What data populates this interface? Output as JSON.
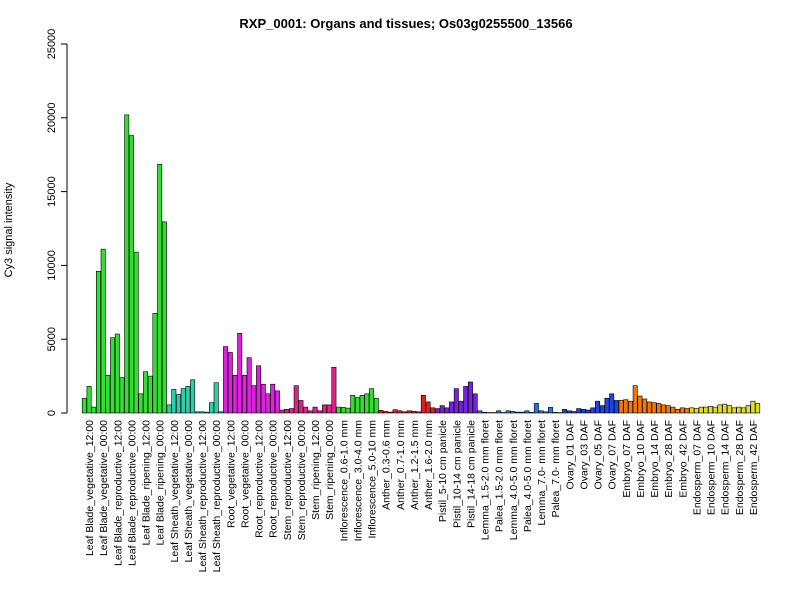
{
  "chart_data": {
    "type": "bar",
    "title": "RXP_0001: Organs and tissues; Os03g0255500_13566",
    "xlabel": "",
    "ylabel": "Cy3 signal intensity",
    "ylim": [
      0,
      25000
    ],
    "yticks": [
      0,
      5000,
      10000,
      15000,
      20000,
      25000
    ],
    "grid": false,
    "legend": "none",
    "group_labels": [
      "Leaf Blade_vegetative_12:00",
      "Leaf Blade_vegetative_00:00",
      "Leaf Blade_reproductive_12:00",
      "Leaf Blade_reproductive_00:00",
      "Leaf Blade_ripening_12:00",
      "Leaf Blade_ripening_00:00",
      "Leaf Sheath_vegetative_12:00",
      "Leaf Sheath_vegetative_00:00",
      "Leaf Sheath_reproductive_12:00",
      "Leaf Sheath_reproductive_00:00",
      "Root_vegetative_12:00",
      "Root_vegetative_00:00",
      "Root_reproductive_12:00",
      "Root_reproductive_00:00",
      "Stem_reproductive_12:00",
      "Stem_reproductive_00:00",
      "Stem_ripening_12:00",
      "Stem_ripening_00:00",
      "Inflorescence_0.6-1.0 mm",
      "Inflorescence_3.0-4.0 mm",
      "Inflorescence_5.0-10 mm",
      "Anther_0.3-0.6 mm",
      "Anther_0.7-1.0 mm",
      "Anther_1.2-1.5 mm",
      "Anther_1.6-2.0 mm",
      "Pistil_5-10 cm panicle",
      "Pistil_10-14 cm panicle",
      "Pistil_14-18 cm panicle",
      "Lemma_1.5-2.0 mm floret",
      "Palea_1.5-2.0 mm floret",
      "Lemma_4.0-5.0 mm floret",
      "Palea_4.0-5.0 mm floret",
      "Lemma_7.0- mm floret",
      "Palea_7.0- mm floret",
      "Ovary_01 DAF",
      "Ovary_03 DAF",
      "Ovary_05 DAF",
      "Ovary_07 DAF",
      "Embryo_07 DAF",
      "Embryo_10 DAF",
      "Embryo_14 DAF",
      "Embryo_28 DAF",
      "Embryo_42 DAF",
      "Endosperm_07 DAF",
      "Endosperm_10 DAF",
      "Endosperm_14 DAF",
      "Endosperm_28 DAF",
      "Endosperm_42 DAF"
    ],
    "groups": [
      {
        "color": "#33dd33",
        "values": [
          1000,
          1800,
          400
        ]
      },
      {
        "color": "#33dd33",
        "values": [
          9600,
          11100,
          2550
        ]
      },
      {
        "color": "#33dd33",
        "values": [
          5100,
          5350,
          2400
        ]
      },
      {
        "color": "#33dd33",
        "values": [
          20200,
          18800,
          10900
        ]
      },
      {
        "color": "#33dd33",
        "values": [
          1300,
          2800,
          2500
        ]
      },
      {
        "color": "#33dd33",
        "values": [
          6750,
          16850,
          12950
        ]
      },
      {
        "color": "#33ccaa",
        "values": [
          550,
          1600,
          1250
        ]
      },
      {
        "color": "#33ccaa",
        "values": [
          1650,
          1800,
          2250
        ]
      },
      {
        "color": "#33ccaa",
        "values": [
          80,
          80,
          60
        ]
      },
      {
        "color": "#33ccaa",
        "values": [
          700,
          2050,
          80
        ]
      },
      {
        "color": "#dd22dd",
        "values": [
          4500,
          4100,
          2550
        ]
      },
      {
        "color": "#dd22dd",
        "values": [
          5400,
          2550,
          3750
        ]
      },
      {
        "color": "#dd22dd",
        "values": [
          1850,
          3200,
          1950
        ]
      },
      {
        "color": "#dd22dd",
        "values": [
          1300,
          1950,
          1500
        ]
      },
      {
        "color": "#dd2288",
        "values": [
          200,
          250,
          300
        ]
      },
      {
        "color": "#dd2288",
        "values": [
          1850,
          850,
          400
        ]
      },
      {
        "color": "#dd2288",
        "values": [
          150,
          400,
          150
        ]
      },
      {
        "color": "#dd2288",
        "values": [
          550,
          550,
          3100
        ]
      },
      {
        "color": "#33dd33",
        "values": [
          400,
          380,
          330
        ]
      },
      {
        "color": "#33dd33",
        "values": [
          1200,
          1050,
          1200
        ]
      },
      {
        "color": "#33dd33",
        "values": [
          1300,
          1650,
          1000
        ]
      },
      {
        "color": "#dd2222",
        "values": [
          180,
          100,
          60
        ]
      },
      {
        "color": "#dd2222",
        "values": [
          220,
          150,
          80
        ]
      },
      {
        "color": "#dd2222",
        "values": [
          150,
          120,
          80
        ]
      },
      {
        "color": "#dd2222",
        "values": [
          1200,
          750,
          350
        ]
      },
      {
        "color": "#7722dd",
        "values": [
          300,
          500,
          350
        ]
      },
      {
        "color": "#7722dd",
        "values": [
          750,
          1650,
          800
        ]
      },
      {
        "color": "#7722dd",
        "values": [
          1800,
          2100,
          1300
        ]
      },
      {
        "color": "#2277dd",
        "values": [
          150,
          50,
          30
        ]
      },
      {
        "color": "#2277dd",
        "values": [
          30,
          150,
          30
        ]
      },
      {
        "color": "#2277dd",
        "values": [
          150,
          100,
          60
        ]
      },
      {
        "color": "#2277dd",
        "values": [
          60,
          150,
          40
        ]
      },
      {
        "color": "#2277dd",
        "values": [
          650,
          150,
          80
        ]
      },
      {
        "color": "#2277dd",
        "values": [
          380,
          40,
          30
        ]
      },
      {
        "color": "#2244dd",
        "values": [
          250,
          150,
          100
        ]
      },
      {
        "color": "#2244dd",
        "values": [
          300,
          250,
          200
        ]
      },
      {
        "color": "#2244dd",
        "values": [
          350,
          800,
          500
        ]
      },
      {
        "color": "#2244dd",
        "values": [
          1000,
          1300,
          850
        ]
      },
      {
        "color": "#ee7711",
        "values": [
          850,
          900,
          800
        ]
      },
      {
        "color": "#ee7711",
        "values": [
          1850,
          1150,
          950
        ]
      },
      {
        "color": "#ee7711",
        "values": [
          750,
          700,
          650
        ]
      },
      {
        "color": "#ee7711",
        "values": [
          550,
          500,
          400
        ]
      },
      {
        "color": "#ee7711",
        "values": [
          250,
          350,
          300
        ]
      },
      {
        "color": "#dddd33",
        "values": [
          350,
          300,
          400
        ]
      },
      {
        "color": "#dddd33",
        "values": [
          400,
          450,
          400
        ]
      },
      {
        "color": "#dddd33",
        "values": [
          550,
          600,
          500
        ]
      },
      {
        "color": "#dddd33",
        "values": [
          350,
          400,
          350
        ]
      },
      {
        "color": "#dddd33",
        "values": [
          500,
          800,
          650
        ]
      }
    ]
  }
}
